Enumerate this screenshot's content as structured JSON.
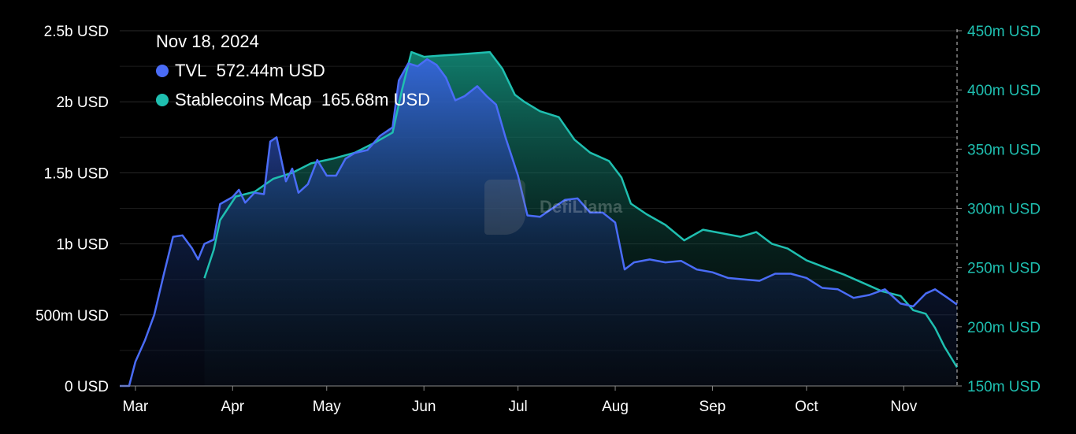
{
  "chart_data": {
    "type": "area",
    "title": "",
    "xlabel": "",
    "tooltip": {
      "date": "Nov 18, 2024",
      "tvl_label": "TVL",
      "tvl_value": "572.44m USD",
      "stable_label": "Stablecoins Mcap",
      "stable_value": "165.68m USD"
    },
    "watermark": "DefiLlama",
    "x_domain": [
      "2024-02-25",
      "2024-11-18"
    ],
    "x_ticks": [
      {
        "date": "2024-03-01",
        "label": "Mar"
      },
      {
        "date": "2024-04-01",
        "label": "Apr"
      },
      {
        "date": "2024-05-01",
        "label": "May"
      },
      {
        "date": "2024-06-01",
        "label": "Jun"
      },
      {
        "date": "2024-07-01",
        "label": "Jul"
      },
      {
        "date": "2024-08-01",
        "label": "Aug"
      },
      {
        "date": "2024-09-01",
        "label": "Sep"
      },
      {
        "date": "2024-10-01",
        "label": "Oct"
      },
      {
        "date": "2024-11-01",
        "label": "Nov"
      }
    ],
    "left_axis": {
      "ylim": [
        0,
        2500000000
      ],
      "ticks": [
        {
          "value": 0,
          "label": "0 USD"
        },
        {
          "value": 500000000,
          "label": "500m USD"
        },
        {
          "value": 1000000000,
          "label": "1b USD"
        },
        {
          "value": 1500000000,
          "label": "1.5b USD"
        },
        {
          "value": 2000000000,
          "label": "2b USD"
        },
        {
          "value": 2500000000,
          "label": "2.5b USD"
        }
      ]
    },
    "right_axis": {
      "ylim": [
        150000000,
        450000000
      ],
      "ticks": [
        {
          "value": 150000000,
          "label": "150m USD"
        },
        {
          "value": 200000000,
          "label": "200m USD"
        },
        {
          "value": 250000000,
          "label": "250m USD"
        },
        {
          "value": 300000000,
          "label": "300m USD"
        },
        {
          "value": 350000000,
          "label": "350m USD"
        },
        {
          "value": 400000000,
          "label": "400m USD"
        },
        {
          "value": 450000000,
          "label": "450m USD"
        }
      ]
    },
    "grid": true,
    "legend_position": "top-left",
    "colors": {
      "tvl": "#4a6cf7",
      "stable": "#1fbfb0",
      "grid": "#2a2a2a"
    },
    "series": [
      {
        "name": "TVL",
        "axis": "left",
        "unit": "USD",
        "points": [
          [
            "2024-02-25",
            0
          ],
          [
            "2024-02-28",
            0
          ],
          [
            "2024-03-01",
            170000000
          ],
          [
            "2024-03-04",
            320000000
          ],
          [
            "2024-03-07",
            500000000
          ],
          [
            "2024-03-10",
            780000000
          ],
          [
            "2024-03-13",
            1050000000
          ],
          [
            "2024-03-16",
            1060000000
          ],
          [
            "2024-03-19",
            970000000
          ],
          [
            "2024-03-21",
            890000000
          ],
          [
            "2024-03-23",
            1000000000
          ],
          [
            "2024-03-26",
            1030000000
          ],
          [
            "2024-03-28",
            1280000000
          ],
          [
            "2024-04-01",
            1330000000
          ],
          [
            "2024-04-03",
            1380000000
          ],
          [
            "2024-04-05",
            1290000000
          ],
          [
            "2024-04-08",
            1360000000
          ],
          [
            "2024-04-11",
            1350000000
          ],
          [
            "2024-04-13",
            1720000000
          ],
          [
            "2024-04-15",
            1750000000
          ],
          [
            "2024-04-18",
            1440000000
          ],
          [
            "2024-04-20",
            1530000000
          ],
          [
            "2024-04-22",
            1360000000
          ],
          [
            "2024-04-25",
            1420000000
          ],
          [
            "2024-04-28",
            1590000000
          ],
          [
            "2024-05-01",
            1480000000
          ],
          [
            "2024-05-04",
            1480000000
          ],
          [
            "2024-05-07",
            1600000000
          ],
          [
            "2024-05-10",
            1640000000
          ],
          [
            "2024-05-14",
            1660000000
          ],
          [
            "2024-05-18",
            1760000000
          ],
          [
            "2024-05-22",
            1820000000
          ],
          [
            "2024-05-24",
            2150000000
          ],
          [
            "2024-05-27",
            2270000000
          ],
          [
            "2024-05-30",
            2250000000
          ],
          [
            "2024-06-02",
            2300000000
          ],
          [
            "2024-06-05",
            2260000000
          ],
          [
            "2024-06-08",
            2170000000
          ],
          [
            "2024-06-11",
            2010000000
          ],
          [
            "2024-06-14",
            2040000000
          ],
          [
            "2024-06-18",
            2110000000
          ],
          [
            "2024-06-21",
            2040000000
          ],
          [
            "2024-06-24",
            1980000000
          ],
          [
            "2024-06-27",
            1750000000
          ],
          [
            "2024-07-01",
            1480000000
          ],
          [
            "2024-07-04",
            1200000000
          ],
          [
            "2024-07-08",
            1190000000
          ],
          [
            "2024-07-12",
            1250000000
          ],
          [
            "2024-07-16",
            1310000000
          ],
          [
            "2024-07-20",
            1320000000
          ],
          [
            "2024-07-24",
            1220000000
          ],
          [
            "2024-07-28",
            1220000000
          ],
          [
            "2024-08-01",
            1150000000
          ],
          [
            "2024-08-04",
            820000000
          ],
          [
            "2024-08-07",
            870000000
          ],
          [
            "2024-08-12",
            890000000
          ],
          [
            "2024-08-17",
            870000000
          ],
          [
            "2024-08-22",
            880000000
          ],
          [
            "2024-08-27",
            820000000
          ],
          [
            "2024-09-01",
            800000000
          ],
          [
            "2024-09-06",
            760000000
          ],
          [
            "2024-09-11",
            750000000
          ],
          [
            "2024-09-16",
            740000000
          ],
          [
            "2024-09-21",
            790000000
          ],
          [
            "2024-09-26",
            790000000
          ],
          [
            "2024-10-01",
            760000000
          ],
          [
            "2024-10-06",
            690000000
          ],
          [
            "2024-10-11",
            680000000
          ],
          [
            "2024-10-16",
            620000000
          ],
          [
            "2024-10-21",
            640000000
          ],
          [
            "2024-10-26",
            680000000
          ],
          [
            "2024-10-31",
            580000000
          ],
          [
            "2024-11-04",
            560000000
          ],
          [
            "2024-11-08",
            650000000
          ],
          [
            "2024-11-11",
            680000000
          ],
          [
            "2024-11-15",
            620000000
          ],
          [
            "2024-11-18",
            572440000
          ]
        ]
      },
      {
        "name": "Stablecoins Mcap",
        "axis": "right",
        "unit": "USD",
        "points": [
          [
            "2024-03-23",
            241000000
          ],
          [
            "2024-03-26",
            265000000
          ],
          [
            "2024-03-28",
            290000000
          ],
          [
            "2024-04-02",
            310000000
          ],
          [
            "2024-04-08",
            314000000
          ],
          [
            "2024-04-14",
            325000000
          ],
          [
            "2024-04-20",
            330000000
          ],
          [
            "2024-04-26",
            338000000
          ],
          [
            "2024-05-03",
            342000000
          ],
          [
            "2024-05-10",
            347000000
          ],
          [
            "2024-05-16",
            355000000
          ],
          [
            "2024-05-22",
            364000000
          ],
          [
            "2024-05-25",
            400000000
          ],
          [
            "2024-05-28",
            432000000
          ],
          [
            "2024-06-01",
            428000000
          ],
          [
            "2024-06-06",
            429000000
          ],
          [
            "2024-06-12",
            430000000
          ],
          [
            "2024-06-17",
            431000000
          ],
          [
            "2024-06-22",
            432000000
          ],
          [
            "2024-06-26",
            418000000
          ],
          [
            "2024-06-30",
            396000000
          ],
          [
            "2024-07-03",
            390000000
          ],
          [
            "2024-07-08",
            382000000
          ],
          [
            "2024-07-14",
            377000000
          ],
          [
            "2024-07-19",
            358000000
          ],
          [
            "2024-07-24",
            347000000
          ],
          [
            "2024-07-30",
            340000000
          ],
          [
            "2024-08-03",
            326000000
          ],
          [
            "2024-08-06",
            304000000
          ],
          [
            "2024-08-11",
            295000000
          ],
          [
            "2024-08-17",
            286000000
          ],
          [
            "2024-08-23",
            273000000
          ],
          [
            "2024-08-29",
            282000000
          ],
          [
            "2024-09-04",
            279000000
          ],
          [
            "2024-09-10",
            276000000
          ],
          [
            "2024-09-15",
            280000000
          ],
          [
            "2024-09-20",
            270000000
          ],
          [
            "2024-09-25",
            266000000
          ],
          [
            "2024-10-01",
            256000000
          ],
          [
            "2024-10-07",
            250000000
          ],
          [
            "2024-10-13",
            244000000
          ],
          [
            "2024-10-19",
            237000000
          ],
          [
            "2024-10-25",
            230000000
          ],
          [
            "2024-10-31",
            226000000
          ],
          [
            "2024-11-04",
            214000000
          ],
          [
            "2024-11-08",
            211000000
          ],
          [
            "2024-11-11",
            199000000
          ],
          [
            "2024-11-14",
            183000000
          ],
          [
            "2024-11-18",
            165680000
          ]
        ]
      }
    ]
  }
}
